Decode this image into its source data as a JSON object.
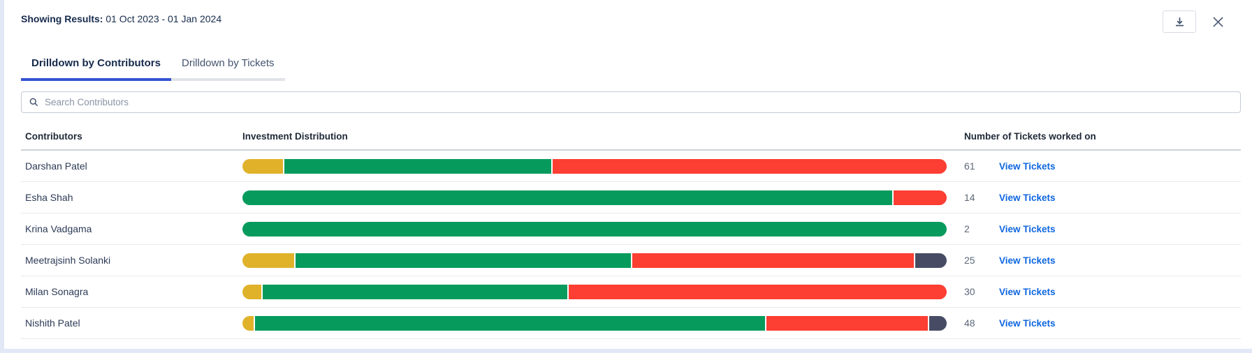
{
  "header": {
    "label": "Showing Results:",
    "value": "01 Oct 2023 - 01 Jan 2024"
  },
  "tabs": [
    {
      "label": "Drilldown by Contributors",
      "active": true
    },
    {
      "label": "Drilldown by Tickets",
      "active": false
    }
  ],
  "search": {
    "placeholder": "Search Contributors"
  },
  "table": {
    "columns": [
      "Contributors",
      "Investment Distribution",
      "Number of Tickets worked on"
    ],
    "link_label": "View Tickets",
    "rows": [
      {
        "name": "Darshan Patel",
        "tickets": "61",
        "segments": [
          {
            "color": "yellow",
            "pct": 5.8
          },
          {
            "color": "green",
            "pct": 38.0
          },
          {
            "color": "red",
            "pct": 56.2
          }
        ]
      },
      {
        "name": "Esha Shah",
        "tickets": "14",
        "segments": [
          {
            "color": "green",
            "pct": 92.4
          },
          {
            "color": "red",
            "pct": 7.6
          }
        ]
      },
      {
        "name": "Krina Vadgama",
        "tickets": "2",
        "segments": [
          {
            "color": "green",
            "pct": 100
          }
        ]
      },
      {
        "name": "Meetrajsinh Solanki",
        "tickets": "25",
        "segments": [
          {
            "color": "yellow",
            "pct": 7.4
          },
          {
            "color": "green",
            "pct": 47.9
          },
          {
            "color": "red",
            "pct": 40.2
          },
          {
            "color": "dark",
            "pct": 4.5
          }
        ]
      },
      {
        "name": "Milan Sonagra",
        "tickets": "30",
        "segments": [
          {
            "color": "yellow",
            "pct": 2.7
          },
          {
            "color": "green",
            "pct": 43.4
          },
          {
            "color": "red",
            "pct": 53.9
          }
        ]
      },
      {
        "name": "Nishith Patel",
        "tickets": "48",
        "segments": [
          {
            "color": "yellow",
            "pct": 1.6
          },
          {
            "color": "green",
            "pct": 72.8
          },
          {
            "color": "red",
            "pct": 23.1
          },
          {
            "color": "dark",
            "pct": 2.5
          }
        ]
      }
    ]
  },
  "colors": {
    "yellow": "#e0b22a",
    "green": "#069b5c",
    "red": "#fd3e33",
    "dark": "#474c64",
    "accent_blue": "#3452d3",
    "link_blue": "#0e66e0"
  }
}
